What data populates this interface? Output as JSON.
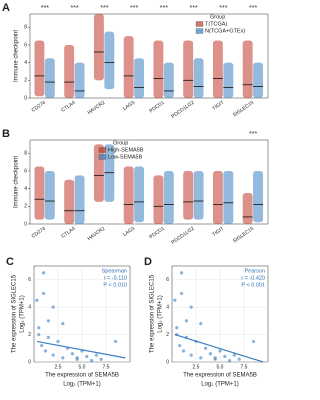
{
  "chart_data": [
    {
      "type": "box",
      "panel": "A",
      "ylabel": "Immune checkpoint",
      "legend_title": "Group",
      "legend": "upper right",
      "categories": [
        "CD274",
        "CTLA4",
        "HAVCR2",
        "LAG3",
        "PDCD1",
        "PDCD1LG2",
        "TIGIT",
        "SIGLEC15"
      ],
      "annotations": [
        "***",
        "***",
        "***",
        "***",
        "***",
        "***",
        "***",
        "***"
      ],
      "ylim": [
        0,
        9.5
      ],
      "yticks": [
        0,
        2,
        4,
        6,
        8
      ],
      "series": [
        {
          "name": "T(TCGA)",
          "color": "#c0392b",
          "values": [
            2.5,
            1.8,
            5.2,
            2.5,
            2.2,
            2.0,
            2.2,
            1.5
          ],
          "low": [
            0.2,
            0,
            2,
            0,
            0,
            0,
            0,
            0
          ],
          "high": [
            6.5,
            6,
            9.5,
            7,
            6.5,
            6.5,
            6.5,
            6.5
          ]
        },
        {
          "name": "N(TCGA+GTEx)",
          "color": "#3a7fc1",
          "values": [
            1.8,
            0.8,
            4.0,
            1.2,
            0.8,
            1.3,
            1.2,
            1.3
          ],
          "low": [
            0,
            0,
            1,
            0,
            0,
            0,
            0,
            0
          ],
          "high": [
            4.5,
            4,
            7.5,
            4.5,
            4,
            4.5,
            4,
            4
          ]
        }
      ]
    },
    {
      "type": "box",
      "panel": "B",
      "ylabel": "Immune checkpoint",
      "legend_title": "Group",
      "legend": "upper center",
      "categories": [
        "CD274",
        "CTLA4",
        "HAVCR2",
        "LAG3",
        "PDCD1",
        "PDCD1LG2",
        "TIGIT",
        "SIGLEC15"
      ],
      "annotations": [
        null,
        null,
        null,
        null,
        null,
        null,
        null,
        "***"
      ],
      "ylim": [
        0,
        9.5
      ],
      "yticks": [
        0,
        2,
        4,
        6,
        8
      ],
      "series": [
        {
          "name": "High-SEMA5B",
          "color": "#c0392b",
          "values": [
            2.8,
            1.5,
            5.5,
            2.2,
            2.0,
            2.5,
            2.2,
            0.8
          ],
          "low": [
            0.5,
            0,
            2.5,
            0,
            0,
            0.5,
            0,
            0
          ],
          "high": [
            6.5,
            5,
            9,
            6.5,
            5.5,
            6,
            6,
            3.5
          ]
        },
        {
          "name": "Low-SEMA5B",
          "color": "#3a7fc1",
          "values": [
            2.6,
            1.5,
            5.8,
            2.5,
            2.2,
            2.6,
            2.4,
            2.2
          ],
          "low": [
            0.5,
            0,
            2.5,
            0.2,
            0,
            0.5,
            0,
            0.2
          ],
          "high": [
            6,
            5.5,
            9,
            6.5,
            6,
            6,
            6,
            6
          ]
        }
      ]
    },
    {
      "type": "scatter",
      "panel": "C",
      "method": "Spearman",
      "r_text": "r = -0.110",
      "p_text": "P < 0.010",
      "xlabel": "The expression of SEMA5B",
      "xunit": "Log₂ (TPM+1)",
      "ylabel": "The expression of SIGLEC15",
      "yunit": "Log₂ (TPM+1)",
      "xlim": [
        0,
        10
      ],
      "xticks": [
        2.5,
        {
          "value": 5,
          "label": "5.0"
        },
        7.5
      ],
      "ylim": [
        0,
        7
      ],
      "yticks": [
        0,
        2,
        4,
        6
      ],
      "color": "#3a7fc1",
      "x": [
        0.3,
        0.5,
        0.8,
        1.0,
        1.2,
        1.5,
        2.0,
        2.5,
        3.0,
        3.5,
        4.0,
        4.5,
        5.0,
        5.5,
        6.0,
        6.5,
        7.0,
        1.0,
        0.5,
        2.0,
        3.0,
        4.5,
        8.5,
        1.5
      ],
      "y": [
        4.5,
        2.5,
        1.2,
        6.5,
        0.8,
        3.0,
        0.5,
        1.5,
        0.3,
        1.0,
        0.6,
        0.2,
        0.8,
        0.4,
        0.1,
        0.5,
        0.2,
        5.0,
        2.0,
        4.0,
        2.8,
        0.3,
        1.5,
        1.8
      ],
      "fit_x": [
        0.3,
        9.5
      ],
      "fit_y": [
        1.5,
        0.3
      ]
    },
    {
      "type": "scatter",
      "panel": "D",
      "method": "Pearson",
      "r_text": "r = -0.420",
      "p_text": "P < 0.001",
      "xlabel": "The expression of SEMA5B",
      "xunit": "Log₂ (TPM+1)",
      "ylabel": "The expression of SIGLEC15",
      "yunit": "Log₂ (TPM+1)",
      "xlim": [
        0,
        10
      ],
      "xticks": [
        2.5,
        {
          "value": 5,
          "label": "5.0"
        },
        7.5
      ],
      "ylim": [
        0,
        7
      ],
      "yticks": [
        0,
        2,
        4,
        6
      ],
      "color": "#3a7fc1",
      "x": [
        0.3,
        0.5,
        0.8,
        1.0,
        1.2,
        1.5,
        2.0,
        2.5,
        3.0,
        3.5,
        4.0,
        4.5,
        5.0,
        5.5,
        6.0,
        6.5,
        7.0,
        1.0,
        0.5,
        2.0,
        3.0,
        4.5,
        8.5,
        1.5
      ],
      "y": [
        4.5,
        2.5,
        1.2,
        6.5,
        0.8,
        3.0,
        0.5,
        1.5,
        0.3,
        1.0,
        0.6,
        0.2,
        0.8,
        0.4,
        0.1,
        0.5,
        0.2,
        5.0,
        2.0,
        4.0,
        2.8,
        0.3,
        1.5,
        1.8
      ],
      "fit_x": [
        0.3,
        9.5
      ],
      "fit_y": [
        2.0,
        0.0
      ]
    }
  ]
}
